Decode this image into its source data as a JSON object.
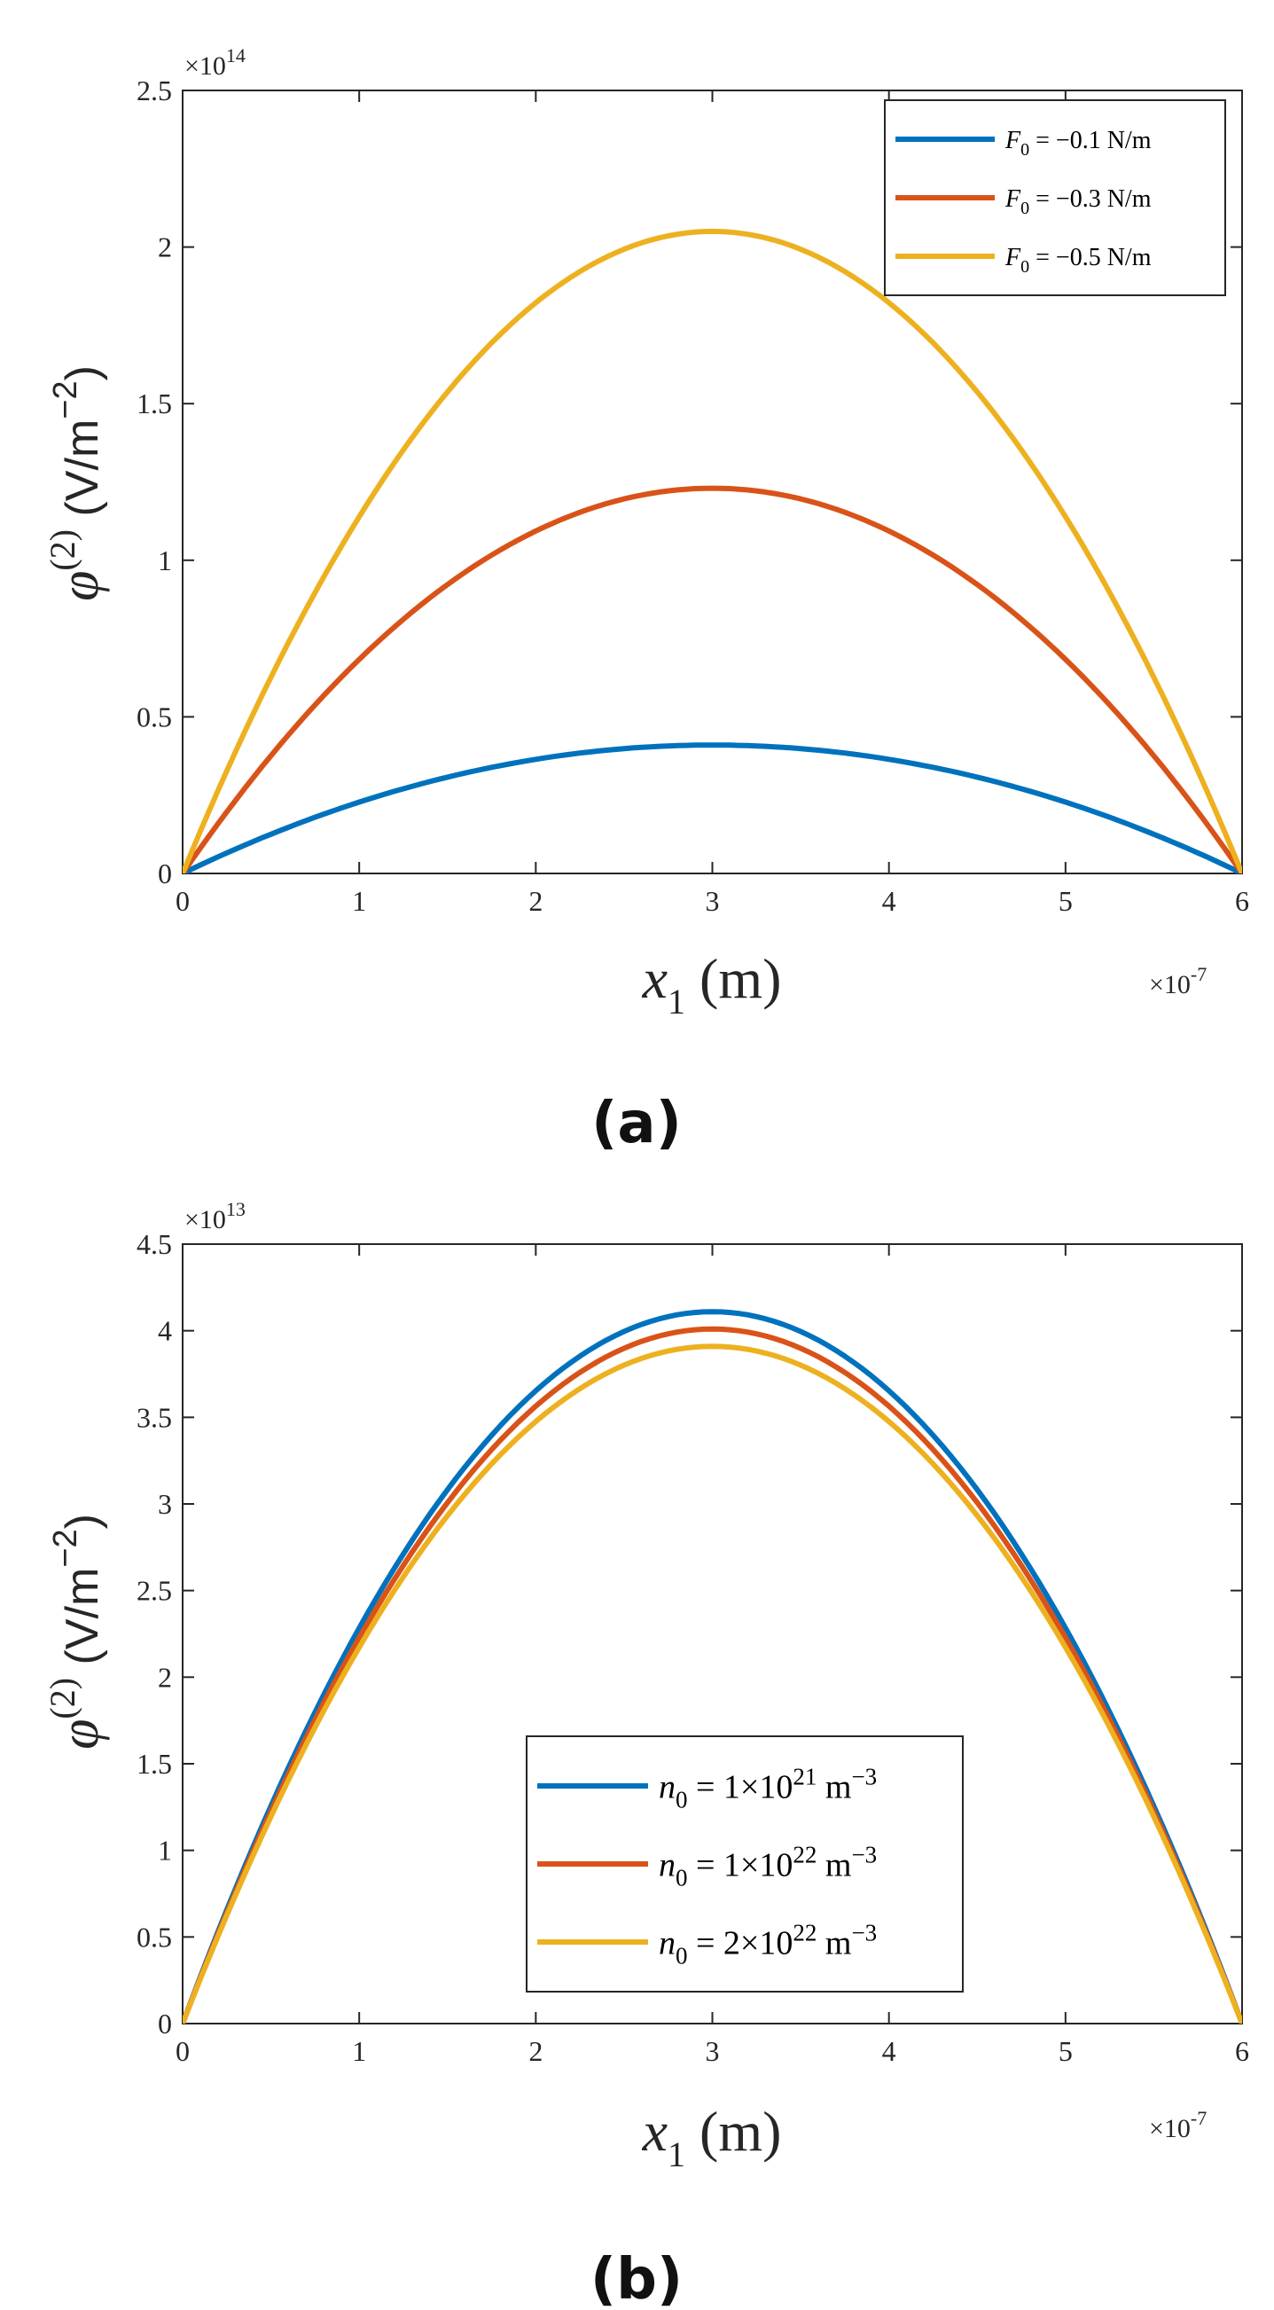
{
  "chart_data": [
    {
      "type": "line",
      "panel_label": "(a)",
      "x_multiplier": "×10",
      "x_multiplier_exp": "-7",
      "y_multiplier": "×10",
      "y_multiplier_exp": "14",
      "xlabel_var": "x",
      "xlabel_sub": "1",
      "xlabel_unit": " (m)",
      "ylabel_var": "φ",
      "ylabel_sup": "(2)",
      "ylabel_unit": " (V/m",
      "ylabel_unit_sup": "−2",
      "ylabel_close": ")",
      "xlim": [
        0,
        6
      ],
      "ylim": [
        0,
        2.5
      ],
      "xticks": [
        "0",
        "1",
        "2",
        "3",
        "4",
        "5",
        "6"
      ],
      "yticks": [
        "0",
        "0.5",
        "1",
        "1.5",
        "2",
        "2.5"
      ],
      "legend_position": "top-right",
      "series": [
        {
          "label_var": "F",
          "label_sub": "0",
          "label_rest": " = −0.1 N/m",
          "color": "#0072BD",
          "peak": 0.41,
          "x_range": [
            0,
            6
          ]
        },
        {
          "label_var": "F",
          "label_sub": "0",
          "label_rest": " = −0.3 N/m",
          "color": "#D95319",
          "peak": 1.23,
          "x_range": [
            0,
            6
          ]
        },
        {
          "label_var": "F",
          "label_sub": "0",
          "label_rest": " = −0.5 N/m",
          "color": "#EDB120",
          "peak": 2.05,
          "x_range": [
            0,
            6
          ]
        }
      ]
    },
    {
      "type": "line",
      "panel_label": "(b)",
      "x_multiplier": "×10",
      "x_multiplier_exp": "-7",
      "y_multiplier": "×10",
      "y_multiplier_exp": "13",
      "xlabel_var": "x",
      "xlabel_sub": "1",
      "xlabel_unit": " (m)",
      "ylabel_var": "φ",
      "ylabel_sup": "(2)",
      "ylabel_unit": " (V/m",
      "ylabel_unit_sup": "−2",
      "ylabel_close": ")",
      "xlim": [
        0,
        6
      ],
      "ylim": [
        0,
        4.5
      ],
      "xticks": [
        "0",
        "1",
        "2",
        "3",
        "4",
        "5",
        "6"
      ],
      "yticks": [
        "0",
        "0.5",
        "1",
        "1.5",
        "2",
        "2.5",
        "3",
        "3.5",
        "4",
        "4.5"
      ],
      "legend_position": "bottom-center",
      "series": [
        {
          "label_var": "n",
          "label_sub": "0",
          "label_mid": " = 1×10",
          "label_exp": "21",
          "label_end": " m",
          "label_end_exp": "−3",
          "color": "#0072BD",
          "peak": 4.11,
          "x_range": [
            0,
            6
          ]
        },
        {
          "label_var": "n",
          "label_sub": "0",
          "label_mid": " = 1×10",
          "label_exp": "22",
          "label_end": " m",
          "label_end_exp": "−3",
          "color": "#D95319",
          "peak": 4.01,
          "x_range": [
            0,
            6
          ]
        },
        {
          "label_var": "n",
          "label_sub": "0",
          "label_mid": " = 2×10",
          "label_exp": "22",
          "label_end": " m",
          "label_end_exp": "−3",
          "color": "#EDB120",
          "peak": 3.91,
          "x_range": [
            0,
            6
          ]
        }
      ]
    }
  ]
}
